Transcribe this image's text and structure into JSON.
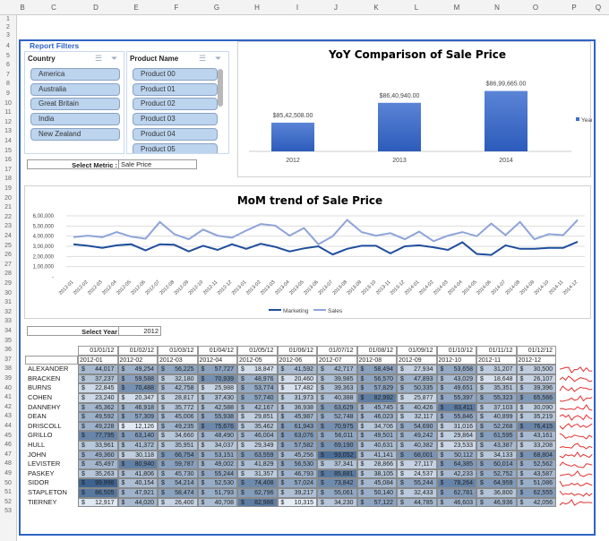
{
  "columns": [
    "B",
    "C",
    "D",
    "E",
    "F",
    "G",
    "H",
    "I",
    "J",
    "K",
    "L",
    "M",
    "N",
    "O",
    "P",
    "Q"
  ],
  "filters": {
    "title": "Report Filters",
    "country": {
      "label": "Country",
      "items": [
        "America",
        "Australia",
        "Great Britain",
        "India",
        "New Zealand"
      ]
    },
    "product": {
      "label": "Product Name",
      "items": [
        "Product 00",
        "Product 01",
        "Product 02",
        "Product 03",
        "Product 04",
        "Product 05"
      ]
    },
    "metric_label": "Select Metric :",
    "metric_value": "Sale Price",
    "year_label": "Select Year",
    "year_value": "2012"
  },
  "colors": {
    "accent": "#2f63c4",
    "bar": "#3b6fcc",
    "marketing": "#1f4e9c",
    "sales": "#8ea4d8",
    "heat_low": "#e4ecf6",
    "heat_high": "#3e6390",
    "sparkline": "#e03030"
  },
  "chart_data": [
    {
      "type": "bar",
      "title": "YoY Comparison of Sale Price",
      "categories": [
        "2012",
        "2013",
        "2014"
      ],
      "values": [
        8542508,
        8640940,
        8699665
      ],
      "labels": [
        "$85,42,508.00",
        "$86,40,940.00",
        "$86,99,665.00"
      ],
      "legend": [
        "Year"
      ],
      "legend_position": "right"
    },
    {
      "type": "line",
      "title": "MoM trend of Sale Price",
      "ylim": [
        0,
        600000
      ],
      "yticks": [
        "-",
        "1,00,000",
        "2,00,000",
        "3,00,000",
        "4,00,000",
        "5,00,000",
        "6,00,000"
      ],
      "grid": true,
      "legend_position": "bottom",
      "x": [
        "2012-01",
        "2012-02",
        "2012-03",
        "2012-04",
        "2012-05",
        "2012-06",
        "2012-07",
        "2012-08",
        "2012-09",
        "2012-10",
        "2012-11",
        "2012-12",
        "2013-01",
        "2013-02",
        "2013-03",
        "2013-04",
        "2013-05",
        "2013-06",
        "2013-07",
        "2013-08",
        "2013-09",
        "2013-10",
        "2013-11",
        "2013-12",
        "2014-01",
        "2014-02",
        "2014-03",
        "2014-04",
        "2014-05",
        "2014-06",
        "2014-07",
        "2014-08",
        "2014-09",
        "2014-10",
        "2014-11",
        "2014-12"
      ],
      "series": [
        {
          "name": "Marketing",
          "values": [
            320000,
            305000,
            285000,
            310000,
            320000,
            260000,
            320000,
            315000,
            250000,
            305000,
            265000,
            320000,
            275000,
            325000,
            295000,
            250000,
            280000,
            300000,
            220000,
            275000,
            305000,
            305000,
            230000,
            300000,
            310000,
            290000,
            265000,
            340000,
            225000,
            215000,
            310000,
            275000,
            275000,
            285000,
            285000,
            345000
          ]
        },
        {
          "name": "Sales",
          "values": [
            390000,
            405000,
            390000,
            440000,
            395000,
            375000,
            540000,
            420000,
            370000,
            465000,
            405000,
            385000,
            455000,
            520000,
            505000,
            405000,
            480000,
            320000,
            400000,
            560000,
            440000,
            405000,
            430000,
            370000,
            445000,
            350000,
            405000,
            440000,
            400000,
            525000,
            410000,
            540000,
            370000,
            420000,
            410000,
            560000
          ]
        }
      ]
    }
  ],
  "table": {
    "dates": [
      "01/01/12",
      "01/02/12",
      "01/03/12",
      "01/04/12",
      "01/05/12",
      "01/06/12",
      "01/07/12",
      "01/08/12",
      "01/09/12",
      "01/10/12",
      "01/11/12",
      "01/12/12"
    ],
    "months": [
      "2012-01",
      "2012-02",
      "2012-03",
      "2012-04",
      "2012-05",
      "2012-06",
      "2012-07",
      "2012-08",
      "2012-09",
      "2012-10",
      "2012-11",
      "2012-12"
    ],
    "currency": "$",
    "rows": [
      {
        "name": "ALEXANDER",
        "values": [
          44017,
          49254,
          56225,
          57727,
          18847,
          41592,
          42717,
          58494,
          27934,
          53658,
          31207,
          30500
        ]
      },
      {
        "name": "BRACKEN",
        "values": [
          37237,
          59588,
          32180,
          70939,
          48976,
          20460,
          39985,
          56570,
          47893,
          43029,
          18648,
          26107
        ]
      },
      {
        "name": "BURNS",
        "values": [
          22845,
          70488,
          42758,
          25988,
          53774,
          17482,
          39363,
          57829,
          50335,
          49651,
          35351,
          39396
        ]
      },
      {
        "name": "COHEN",
        "values": [
          23240,
          20347,
          28817,
          37430,
          57740,
          31973,
          40388,
          82992,
          25877,
          55397,
          55323,
          65566
        ]
      },
      {
        "name": "DANNEHY",
        "values": [
          45362,
          46918,
          35772,
          42588,
          42167,
          36938,
          63629,
          45745,
          40426,
          83411,
          37103,
          30090
        ]
      },
      {
        "name": "DEAN",
        "values": [
          49592,
          57309,
          45006,
          55938,
          29851,
          45987,
          52748,
          46023,
          32117,
          55846,
          40899,
          35219
        ]
      },
      {
        "name": "DRISCOLL",
        "values": [
          49228,
          12126,
          49235,
          75676,
          35462,
          61943,
          70975,
          34706,
          54690,
          31016,
          52268,
          76415
        ]
      },
      {
        "name": "GRILLO",
        "values": [
          77795,
          63140,
          34660,
          48490,
          46004,
          63076,
          56011,
          49501,
          49242,
          29864,
          61595,
          43161
        ]
      },
      {
        "name": "HULL",
        "values": [
          33961,
          41372,
          35951,
          34037,
          29349,
          57582,
          69190,
          40631,
          40382,
          23533,
          43387,
          33208
        ]
      },
      {
        "name": "JOHN",
        "values": [
          49360,
          30118,
          66754,
          53151,
          63559,
          45256,
          93052,
          41141,
          68001,
          50112,
          34133,
          68804
        ]
      },
      {
        "name": "LEVISTER",
        "values": [
          45497,
          80940,
          59787,
          49002,
          41829,
          56530,
          37341,
          28866,
          27117,
          64385,
          60014,
          52562
        ]
      },
      {
        "name": "PASKEY",
        "values": [
          35263,
          41806,
          45730,
          55244,
          31357,
          46793,
          85881,
          38105,
          24537,
          42233,
          52752,
          43587
        ]
      },
      {
        "name": "SIDOR",
        "values": [
          99998,
          40154,
          54214,
          52530,
          74408,
          57024,
          73842,
          45084,
          55244,
          78264,
          64959,
          51086
        ]
      },
      {
        "name": "STAPLETON",
        "values": [
          86505,
          47921,
          58474,
          51793,
          62796,
          39217,
          55061,
          50140,
          32433,
          62781,
          36800,
          62555
        ]
      },
      {
        "name": "TIERNEY",
        "values": [
          12917,
          44020,
          26400,
          40708,
          82986,
          10315,
          34230,
          57122,
          44785,
          46603,
          46936,
          42056
        ]
      }
    ]
  }
}
